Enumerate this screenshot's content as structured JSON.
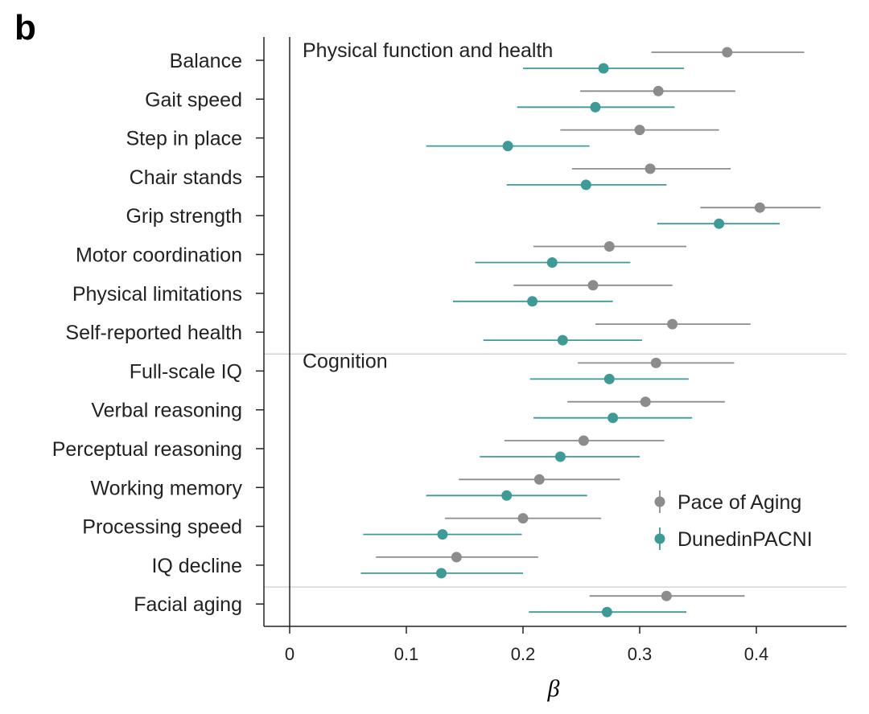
{
  "panel_label": "b",
  "chart_data": {
    "type": "scatter",
    "subtype": "forest-plot",
    "xlabel": "β",
    "xlim": [
      -0.02,
      0.48
    ],
    "xticks": [
      0,
      0.1,
      0.2,
      0.3,
      0.4
    ],
    "xtick_labels": [
      "0",
      "0.1",
      "0.2",
      "0.3",
      "0.4"
    ],
    "categories": [
      "Balance",
      "Gait speed",
      "Step in place",
      "Chair stands",
      "Grip strength",
      "Motor coordination",
      "Physical limitations",
      "Self-reported health",
      "Full-scale IQ",
      "Verbal reasoning",
      "Perceptual reasoning",
      "Working memory",
      "Processing speed",
      "IQ decline",
      "Facial aging"
    ],
    "groups": [
      {
        "label": "Physical function and health",
        "start": 0,
        "end": 7
      },
      {
        "label": "Cognition",
        "start": 8,
        "end": 13
      },
      {
        "label": "",
        "start": 14,
        "end": 14
      }
    ],
    "series": [
      {
        "name": "Pace of Aging",
        "color": "#8c8c8c",
        "values": [
          0.375,
          0.316,
          0.3,
          0.309,
          0.403,
          0.274,
          0.26,
          0.328,
          0.314,
          0.305,
          0.252,
          0.214,
          0.2,
          0.143,
          0.323
        ],
        "ci_low": [
          0.31,
          0.249,
          0.232,
          0.242,
          0.352,
          0.209,
          0.192,
          0.262,
          0.247,
          0.238,
          0.184,
          0.145,
          0.133,
          0.074,
          0.257
        ],
        "ci_high": [
          0.441,
          0.382,
          0.368,
          0.378,
          0.455,
          0.34,
          0.328,
          0.395,
          0.381,
          0.373,
          0.321,
          0.283,
          0.267,
          0.213,
          0.39
        ]
      },
      {
        "name": "DunedinPACNI",
        "color": "#3e9a96",
        "values": [
          0.269,
          0.262,
          0.187,
          0.254,
          0.368,
          0.225,
          0.208,
          0.234,
          0.274,
          0.277,
          0.232,
          0.186,
          0.131,
          0.13,
          0.272
        ],
        "ci_low": [
          0.2,
          0.195,
          0.117,
          0.186,
          0.315,
          0.159,
          0.14,
          0.166,
          0.206,
          0.209,
          0.163,
          0.117,
          0.063,
          0.061,
          0.205
        ],
        "ci_high": [
          0.338,
          0.33,
          0.257,
          0.323,
          0.42,
          0.292,
          0.277,
          0.302,
          0.342,
          0.345,
          0.3,
          0.255,
          0.199,
          0.2,
          0.34
        ]
      }
    ],
    "legend": {
      "position": "right-lower"
    },
    "grid": false
  }
}
